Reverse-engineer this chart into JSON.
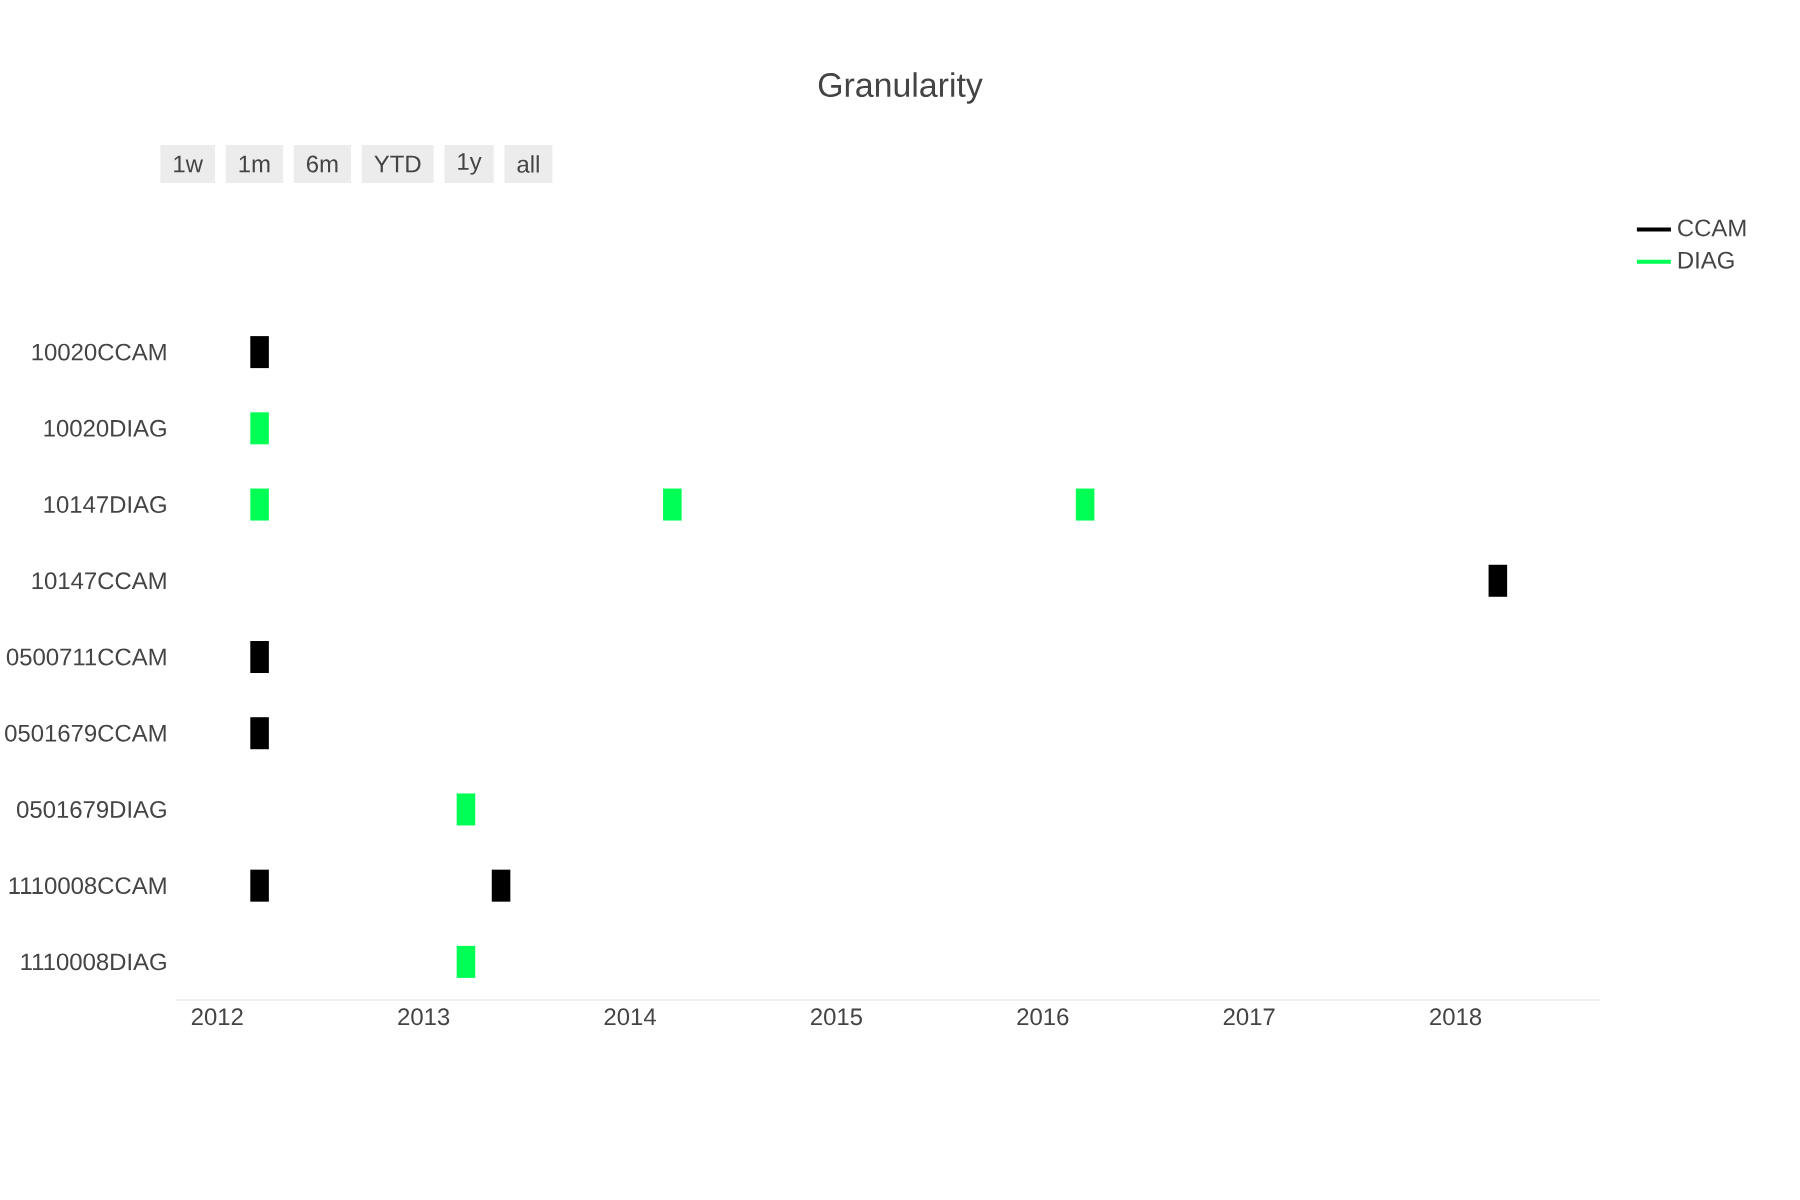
{
  "chart_data": {
    "type": "bar",
    "orientation": "horizontal",
    "title": "Granularity",
    "annotations": [
      "1w",
      "1m",
      "6m",
      "YTD",
      "1y",
      "all"
    ],
    "categories": [
      "10020CCAM",
      "10020DIAG",
      "10147DIAG",
      "10147CCAM",
      "0500711CCAM",
      "0501679CCAM",
      "0501679DIAG",
      "1110008CCAM",
      "1110008DIAG"
    ],
    "series": [
      {
        "name": "CCAM",
        "color": "#000000",
        "base": [
          2012.16,
          null,
          null,
          2018.16,
          2012.16,
          2012.16,
          null,
          2012.16,
          null
        ],
        "values": [
          0.09,
          null,
          null,
          0.09,
          0.09,
          0.09,
          null,
          0.09,
          null
        ]
      },
      {
        "name": "DIAG",
        "color": "#00ff55",
        "base": [
          null,
          2012.16,
          2012.16,
          null,
          null,
          null,
          2013.16,
          null,
          2013.16
        ],
        "values": [
          null,
          0.09,
          0.09,
          null,
          null,
          null,
          0.09,
          null,
          0.09
        ]
      },
      {
        "color": "#00ff55",
        "base": [
          null,
          null,
          2014.16,
          null,
          null,
          null,
          null,
          null,
          null
        ],
        "values": [
          null,
          null,
          0.09,
          null,
          null,
          null,
          null,
          null,
          null
        ]
      },
      {
        "color": "#00ff55",
        "base": [
          null,
          null,
          2016.16,
          null,
          null,
          null,
          null,
          null,
          null
        ],
        "values": [
          null,
          null,
          0.09,
          null,
          null,
          null,
          null,
          null,
          null
        ]
      },
      {
        "color": "#000000",
        "base": [
          null,
          null,
          null,
          null,
          null,
          null,
          null,
          2013.33,
          null
        ],
        "values": [
          null,
          null,
          null,
          null,
          null,
          null,
          null,
          0.09,
          null
        ]
      }
    ],
    "xlim": [
      2011.8,
      2018.7
    ],
    "xticks": [
      2012,
      2013,
      2014,
      2015,
      2016,
      2017,
      2018
    ],
    "legend": "top right"
  }
}
